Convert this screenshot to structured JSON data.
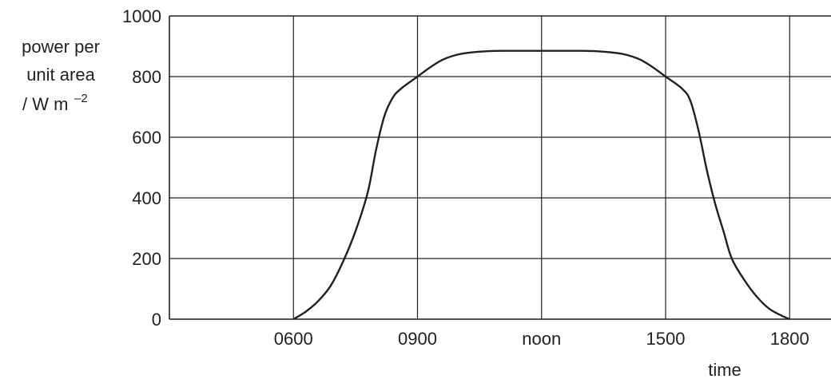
{
  "chart_data": {
    "type": "line",
    "title": "",
    "xlabel": "time",
    "ylabel_lines": [
      "power per",
      "unit area",
      "/ W m",
      "–2"
    ],
    "x_tick_labels": [
      "0600",
      "0900",
      "noon",
      "1500",
      "1800"
    ],
    "x_tick_hours": [
      6,
      9,
      12,
      15,
      18
    ],
    "xlim": [
      3,
      19
    ],
    "ylim": [
      0,
      1000
    ],
    "y_ticks": [
      0,
      200,
      400,
      600,
      800,
      1000
    ],
    "grid": true,
    "series": [
      {
        "x": [
          6.0,
          6.3,
          6.6,
          6.9,
          7.2,
          7.5,
          7.8,
          8.0,
          8.2,
          8.4,
          8.6,
          9.0,
          9.3,
          9.6,
          9.9,
          10.2,
          10.6,
          11.0,
          12.0,
          13.0,
          13.4,
          13.8,
          14.1,
          14.4,
          14.7,
          15.0,
          15.4,
          15.6,
          15.8,
          16.0,
          16.2,
          16.4,
          16.6,
          16.9,
          17.2,
          17.5,
          17.8,
          18.0
        ],
        "y": [
          0,
          25,
          60,
          110,
          190,
          290,
          420,
          560,
          670,
          730,
          760,
          800,
          830,
          855,
          870,
          878,
          883,
          885,
          885,
          885,
          883,
          878,
          870,
          855,
          830,
          800,
          760,
          720,
          620,
          490,
          380,
          290,
          200,
          130,
          75,
          35,
          12,
          0
        ]
      }
    ]
  }
}
